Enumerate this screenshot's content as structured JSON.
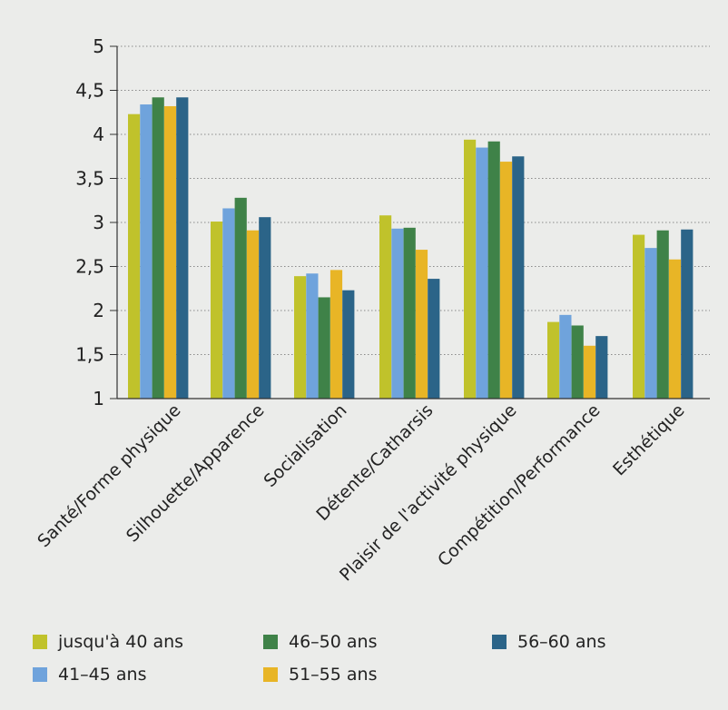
{
  "colors": [
    "#c0c22b",
    "#6fa3dc",
    "#3f8248",
    "#e8b526",
    "#2b6488"
  ],
  "chart_data": {
    "type": "bar",
    "title": "",
    "xlabel": "",
    "ylabel": "",
    "ylim": [
      1,
      5
    ],
    "yticks": [
      1,
      1.5,
      2,
      2.5,
      3,
      3.5,
      4,
      4.5,
      5
    ],
    "ytick_labels": [
      "1",
      "1,5",
      "2",
      "2,5",
      "3",
      "3,5",
      "4",
      "4,5",
      "5"
    ],
    "grid": true,
    "legend_position": "bottom",
    "categories": [
      "Santé/Forme physique",
      "Silhouette/Apparence",
      "Socialisation",
      "Détente/Catharsis",
      "Plaisir de l'activité physique",
      "Compétition/Performance",
      "Esthétique"
    ],
    "series": [
      {
        "name": "jusqu'à 40 ans",
        "values": [
          4.23,
          3.01,
          2.39,
          3.08,
          3.94,
          1.87,
          2.86
        ]
      },
      {
        "name": "41–45 ans",
        "values": [
          4.34,
          3.16,
          2.42,
          2.93,
          3.85,
          1.95,
          2.71
        ]
      },
      {
        "name": "46–50 ans",
        "values": [
          4.42,
          3.28,
          2.15,
          2.94,
          3.92,
          1.83,
          2.91
        ]
      },
      {
        "name": "51–55 ans",
        "values": [
          4.32,
          2.91,
          2.46,
          2.69,
          3.69,
          1.6,
          2.58
        ]
      },
      {
        "name": "56–60 ans",
        "values": [
          4.42,
          3.06,
          2.23,
          2.36,
          3.75,
          1.71,
          2.92
        ]
      }
    ]
  }
}
